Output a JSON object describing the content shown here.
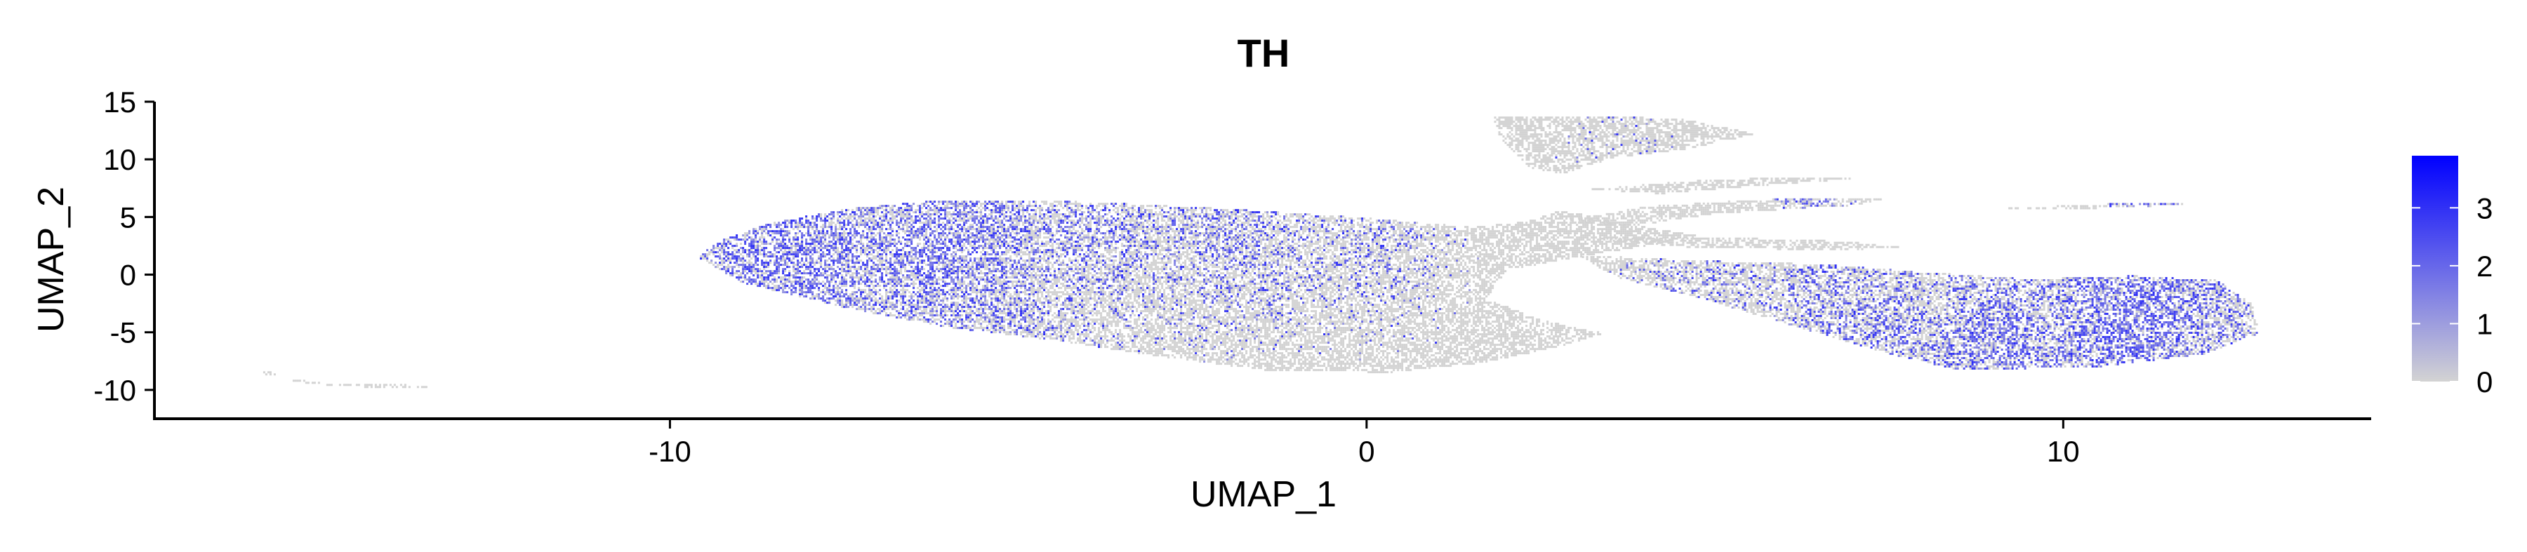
{
  "chart_data": {
    "type": "scatter",
    "title": "TH",
    "xlabel": "UMAP_1",
    "ylabel": "UMAP_2",
    "xlim": [
      -17.4,
      14.4
    ],
    "ylim": [
      -12.5,
      15.0
    ],
    "x_ticks": [
      {
        "value": -10,
        "label": "-10"
      },
      {
        "value": 0,
        "label": "0"
      },
      {
        "value": 10,
        "label": "10"
      }
    ],
    "y_ticks": [
      {
        "value": 15,
        "label": "15"
      },
      {
        "value": 10,
        "label": "10"
      },
      {
        "value": 5,
        "label": "5"
      },
      {
        "value": 0,
        "label": "0"
      },
      {
        "value": -5,
        "label": "-5"
      },
      {
        "value": -10,
        "label": "-10"
      }
    ],
    "grid": false,
    "legend": {
      "position": "right",
      "type": "colorbar",
      "range": [
        0,
        3.9
      ],
      "ticks": [
        {
          "value": 0,
          "label": "0"
        },
        {
          "value": 1,
          "label": "1"
        },
        {
          "value": 2,
          "label": "2"
        },
        {
          "value": 3,
          "label": "3"
        }
      ]
    },
    "colors": {
      "low": "#d3d3d3",
      "high": "#0000ff"
    },
    "regions": [
      {
        "name": "left lobe",
        "points": [
          [
            -9.6,
            1.6
          ],
          [
            -9.4,
            2.8
          ],
          [
            -8.6,
            4.5
          ],
          [
            -7.5,
            5.8
          ],
          [
            -6,
            6.6
          ],
          [
            -4,
            6.4
          ],
          [
            -2,
            5.8
          ],
          [
            0,
            5.0
          ],
          [
            1.5,
            4.2
          ],
          [
            2.3,
            4.7
          ],
          [
            2.8,
            5.7
          ],
          [
            3.6,
            4.6
          ],
          [
            4.8,
            3.4
          ],
          [
            3.2,
            1.8
          ],
          [
            2.0,
            0.5
          ],
          [
            1.7,
            -2.0
          ],
          [
            2.6,
            -4.0
          ],
          [
            3.4,
            -5.0
          ],
          [
            2.6,
            -6.4
          ],
          [
            1.6,
            -7.6
          ],
          [
            0.3,
            -8.4
          ],
          [
            -1.5,
            -8.2
          ],
          [
            -3,
            -7.0
          ],
          [
            -4.5,
            -5.6
          ],
          [
            -6,
            -4.5
          ],
          [
            -7.5,
            -2.8
          ],
          [
            -9,
            -0.6
          ]
        ],
        "density": [
          {
            "x": -8.2,
            "y": 1.8,
            "r": 2.8,
            "v": 1.5
          },
          {
            "x": -6,
            "y": 3.0,
            "r": 2.6,
            "v": 1.3
          },
          {
            "x": -4,
            "y": 4.6,
            "r": 2.0,
            "v": 0.9
          },
          {
            "x": -2,
            "y": 3.6,
            "r": 2.0,
            "v": 0.8
          },
          {
            "x": -5,
            "y": -3.5,
            "r": 2.0,
            "v": 0.7
          },
          {
            "x": 0,
            "y": 3.0,
            "r": 1.8,
            "v": 0.5
          }
        ]
      },
      {
        "name": "right lobe",
        "points": [
          [
            3.0,
            1.8
          ],
          [
            4.8,
            1.3
          ],
          [
            6.5,
            1.0
          ],
          [
            8,
            0.3
          ],
          [
            9.5,
            -0.3
          ],
          [
            11,
            0.0
          ],
          [
            12.2,
            -0.4
          ],
          [
            12.7,
            -2.5
          ],
          [
            12.8,
            -5.0
          ],
          [
            12.0,
            -6.8
          ],
          [
            10.5,
            -7.9
          ],
          [
            8.5,
            -8.2
          ],
          [
            7.5,
            -6.8
          ],
          [
            6.2,
            -4.5
          ],
          [
            4.8,
            -2.0
          ],
          [
            3.6,
            -0.2
          ]
        ],
        "density": [
          {
            "x": 11,
            "y": -4.5,
            "r": 2.3,
            "v": 1.6
          },
          {
            "x": 9.2,
            "y": -6.2,
            "r": 2.0,
            "v": 1.3
          },
          {
            "x": 7,
            "y": -3.5,
            "r": 2.0,
            "v": 1.0
          },
          {
            "x": 5,
            "y": -1.2,
            "r": 1.6,
            "v": 0.6
          }
        ]
      },
      {
        "name": "upper lobe",
        "points": [
          [
            1.8,
            13.8
          ],
          [
            3.2,
            13.9
          ],
          [
            4.5,
            13.6
          ],
          [
            5.6,
            12.3
          ],
          [
            4.6,
            11.0
          ],
          [
            3.5,
            10.2
          ],
          [
            2.8,
            8.8
          ],
          [
            2.3,
            9.4
          ],
          [
            1.9,
            12.0
          ]
        ],
        "density": [
          {
            "x": 3.5,
            "y": 12.4,
            "r": 1.0,
            "v": 0.2
          }
        ]
      },
      {
        "name": "upper branch",
        "points": [
          [
            3.2,
            7.5
          ],
          [
            4.6,
            8.2
          ],
          [
            6.2,
            8.6
          ],
          [
            7.0,
            8.4
          ],
          [
            5.6,
            7.8
          ],
          [
            4.2,
            7.1
          ]
        ],
        "density": []
      },
      {
        "name": "middle streak",
        "points": [
          [
            2.8,
            4.7
          ],
          [
            4.0,
            6.0
          ],
          [
            5.6,
            6.6
          ],
          [
            7.5,
            6.8
          ],
          [
            7.0,
            6.1
          ],
          [
            5.0,
            5.4
          ],
          [
            3.7,
            4.2
          ]
        ],
        "density": [
          {
            "x": 6.5,
            "y": 6.4,
            "r": 0.8,
            "v": 0.8
          }
        ]
      },
      {
        "name": "side streak",
        "points": [
          [
            3.2,
            3.2
          ],
          [
            4.6,
            3.4
          ],
          [
            6.8,
            3.0
          ],
          [
            7.8,
            2.4
          ],
          [
            6.5,
            2.2
          ],
          [
            4.5,
            2.5
          ]
        ],
        "density": []
      },
      {
        "name": "far right streak",
        "points": [
          [
            9.0,
            5.8
          ],
          [
            10.5,
            6.2
          ],
          [
            11.9,
            6.4
          ],
          [
            11.7,
            6.1
          ],
          [
            10.2,
            5.8
          ]
        ],
        "density": [
          {
            "x": 11.2,
            "y": 6.2,
            "r": 0.8,
            "v": 1.4
          }
        ]
      },
      {
        "name": "bottom left arc",
        "points": [
          [
            -15.8,
            -8.2
          ],
          [
            -15.4,
            -9.2
          ],
          [
            -14.8,
            -9.6
          ],
          [
            -13.5,
            -9.8
          ],
          [
            -13.5,
            -9.5
          ],
          [
            -14.9,
            -9.4
          ],
          [
            -15.5,
            -8.9
          ],
          [
            -15.9,
            -8.5
          ]
        ],
        "density": []
      }
    ]
  }
}
